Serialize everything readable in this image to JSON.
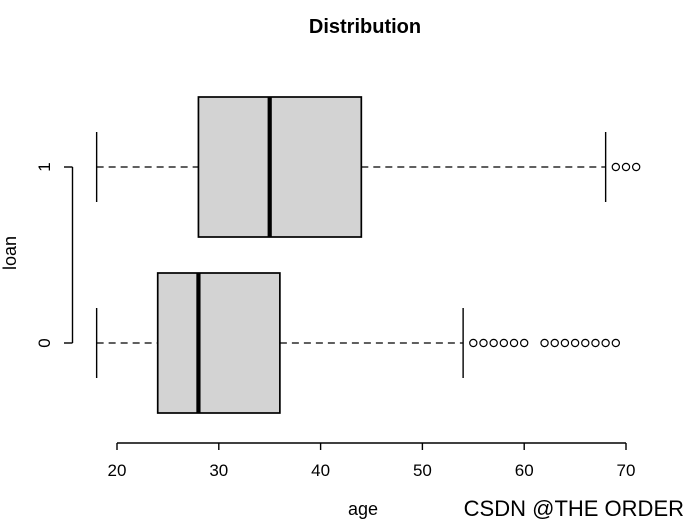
{
  "watermark": "CSDN @THE ORDER",
  "colors": {
    "box_fill": "#d3d3d3",
    "line": "#000000",
    "watermark": "#b3b3b3",
    "background": "#ffffff"
  },
  "chart_data": {
    "type": "boxplot",
    "orientation": "horizontal",
    "title": "Distribution",
    "xlabel": "age",
    "ylabel": "loan",
    "xlim": [
      20,
      70
    ],
    "xticks": [
      20,
      30,
      40,
      50,
      60,
      70
    ],
    "categories": [
      "0",
      "1"
    ],
    "grid": false,
    "box_fill": "#d3d3d3",
    "series": [
      {
        "category": "1",
        "whisker_low": 18,
        "q1": 28,
        "median": 35,
        "q3": 44,
        "whisker_high": 68,
        "outliers": [
          69,
          70,
          71
        ]
      },
      {
        "category": "0",
        "whisker_low": 18,
        "q1": 24,
        "median": 28,
        "q3": 36,
        "whisker_high": 54,
        "outliers": [
          55,
          56,
          57,
          58,
          59,
          60,
          62,
          63,
          64,
          65,
          66,
          67,
          68,
          69
        ]
      }
    ]
  }
}
